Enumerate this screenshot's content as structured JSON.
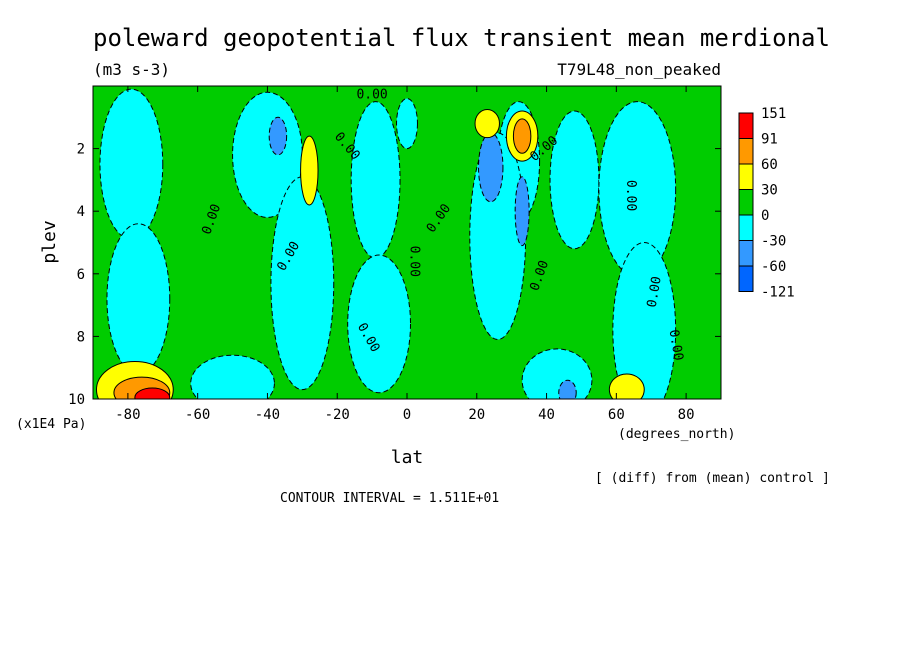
{
  "chart_data": {
    "type": "heatmap",
    "title": "poleward geopotential flux transient mean merdional",
    "units": "(m3 s-3)",
    "dataset": "T79L48_non_peaked",
    "xlabel": "lat",
    "x_units": "(degrees_north)",
    "ylabel": "plev",
    "y_units": "(x1E4 Pa)",
    "xlim": [
      -90,
      90
    ],
    "ylim": [
      0,
      10
    ],
    "x_ticks": [
      -80,
      -60,
      -40,
      -20,
      0,
      20,
      40,
      60,
      80
    ],
    "y_ticks": [
      2,
      4,
      6,
      8,
      10
    ],
    "diff_note": "[ (diff) from (mean) control ]",
    "contour_interval": "CONTOUR INTERVAL = 1.511E+01",
    "zero_contour_label": "0.00",
    "colorbar": {
      "levels": [
        "151",
        "91",
        "60",
        "30",
        "0",
        "-30",
        "-60",
        "-121"
      ],
      "colors": [
        "#ff0000",
        "#ff9900",
        "#ffff00",
        "#00cc00",
        "#00ffff",
        "#3399ff",
        "#0066ff"
      ]
    },
    "background_sign": {
      "color": "#00cc00",
      "value_range": [
        0,
        30
      ]
    },
    "regions": [
      {
        "sign": "neg",
        "color": "#00ffff",
        "range": [
          -30,
          0
        ],
        "cx": 32,
        "cy": 2.4,
        "rx": 6,
        "ry": 1.9
      },
      {
        "sign": "neg",
        "color": "#00ffff",
        "range": [
          -30,
          0
        ],
        "cx": 26,
        "cy": 4.8,
        "rx": 8,
        "ry": 3.3
      },
      {
        "sign": "neg",
        "color": "#00ffff",
        "range": [
          -30,
          0
        ],
        "cx": 48,
        "cy": 3.0,
        "rx": 7,
        "ry": 2.2
      },
      {
        "sign": "neg",
        "color": "#00ffff",
        "range": [
          -30,
          0
        ],
        "cx": 66,
        "cy": 3.3,
        "rx": 11,
        "ry": 2.8
      },
      {
        "sign": "neg",
        "color": "#00ffff",
        "range": [
          -30,
          0
        ],
        "cx": 68,
        "cy": 7.8,
        "rx": 9,
        "ry": 2.8
      },
      {
        "sign": "neg",
        "color": "#00ffff",
        "range": [
          -30,
          0
        ],
        "cx": -79,
        "cy": 2.5,
        "rx": 9,
        "ry": 2.4
      },
      {
        "sign": "neg",
        "color": "#00ffff",
        "range": [
          -30,
          0
        ],
        "cx": -77,
        "cy": 6.8,
        "rx": 9,
        "ry": 2.4
      },
      {
        "sign": "neg",
        "color": "#00ffff",
        "range": [
          -30,
          0
        ],
        "cx": -40,
        "cy": 2.2,
        "rx": 10,
        "ry": 2.0
      },
      {
        "sign": "neg",
        "color": "#00ffff",
        "range": [
          -30,
          0
        ],
        "cx": -30,
        "cy": 6.3,
        "rx": 9,
        "ry": 3.4
      },
      {
        "sign": "neg",
        "color": "#00ffff",
        "range": [
          -30,
          0
        ],
        "cx": -9,
        "cy": 3.0,
        "rx": 7,
        "ry": 2.5
      },
      {
        "sign": "neg",
        "color": "#00ffff",
        "range": [
          -30,
          0
        ],
        "cx": 0,
        "cy": 1.2,
        "rx": 3,
        "ry": 0.8
      },
      {
        "sign": "neg",
        "color": "#00ffff",
        "range": [
          -30,
          0
        ],
        "cx": -8,
        "cy": 7.6,
        "rx": 9,
        "ry": 2.2
      },
      {
        "sign": "neg",
        "color": "#00ffff",
        "range": [
          -30,
          0
        ],
        "cx": -50,
        "cy": 9.5,
        "rx": 12,
        "ry": 0.9
      },
      {
        "sign": "neg",
        "color": "#00ffff",
        "range": [
          -30,
          0
        ],
        "cx": 43,
        "cy": 9.4,
        "rx": 10,
        "ry": 1.0
      },
      {
        "sign": "neg",
        "color": "#3399ff",
        "range": [
          -60,
          -30
        ],
        "cx": 24,
        "cy": 2.6,
        "rx": 3.5,
        "ry": 1.1
      },
      {
        "sign": "neg",
        "color": "#3399ff",
        "range": [
          -60,
          -30
        ],
        "cx": 33,
        "cy": 4.0,
        "rx": 2.0,
        "ry": 1.1
      },
      {
        "sign": "neg",
        "color": "#3399ff",
        "range": [
          -60,
          -30
        ],
        "cx": -37,
        "cy": 1.6,
        "rx": 2.5,
        "ry": 0.6
      },
      {
        "sign": "neg",
        "color": "#3399ff",
        "range": [
          -60,
          -30
        ],
        "cx": 46,
        "cy": 9.8,
        "rx": 2.5,
        "ry": 0.4
      },
      {
        "sign": "pos",
        "color": "#ffff00",
        "range": [
          30,
          60
        ],
        "cx": -28,
        "cy": 2.7,
        "rx": 2.5,
        "ry": 1.1
      },
      {
        "sign": "pos",
        "color": "#ffff00",
        "range": [
          30,
          60
        ],
        "cx": 33,
        "cy": 1.6,
        "rx": 4.5,
        "ry": 0.8
      },
      {
        "sign": "pos",
        "color": "#ffff00",
        "range": [
          30,
          60
        ],
        "cx": 23,
        "cy": 1.2,
        "rx": 3.5,
        "ry": 0.45
      },
      {
        "sign": "pos",
        "color": "#ffff00",
        "range": [
          30,
          60
        ],
        "cx": -78,
        "cy": 9.7,
        "rx": 11,
        "ry": 0.9
      },
      {
        "sign": "pos",
        "color": "#ffff00",
        "range": [
          30,
          60
        ],
        "cx": 63,
        "cy": 9.7,
        "rx": 5,
        "ry": 0.5
      },
      {
        "sign": "pos",
        "color": "#ff9900",
        "range": [
          60,
          91
        ],
        "cx": 33,
        "cy": 1.6,
        "rx": 2.5,
        "ry": 0.55
      },
      {
        "sign": "pos",
        "color": "#ff9900",
        "range": [
          60,
          91
        ],
        "cx": -76,
        "cy": 9.8,
        "rx": 8,
        "ry": 0.5
      },
      {
        "sign": "pos",
        "color": "#ff0000",
        "range": [
          91,
          151
        ],
        "cx": -73,
        "cy": 9.95,
        "rx": 5,
        "ry": 0.3
      }
    ]
  }
}
